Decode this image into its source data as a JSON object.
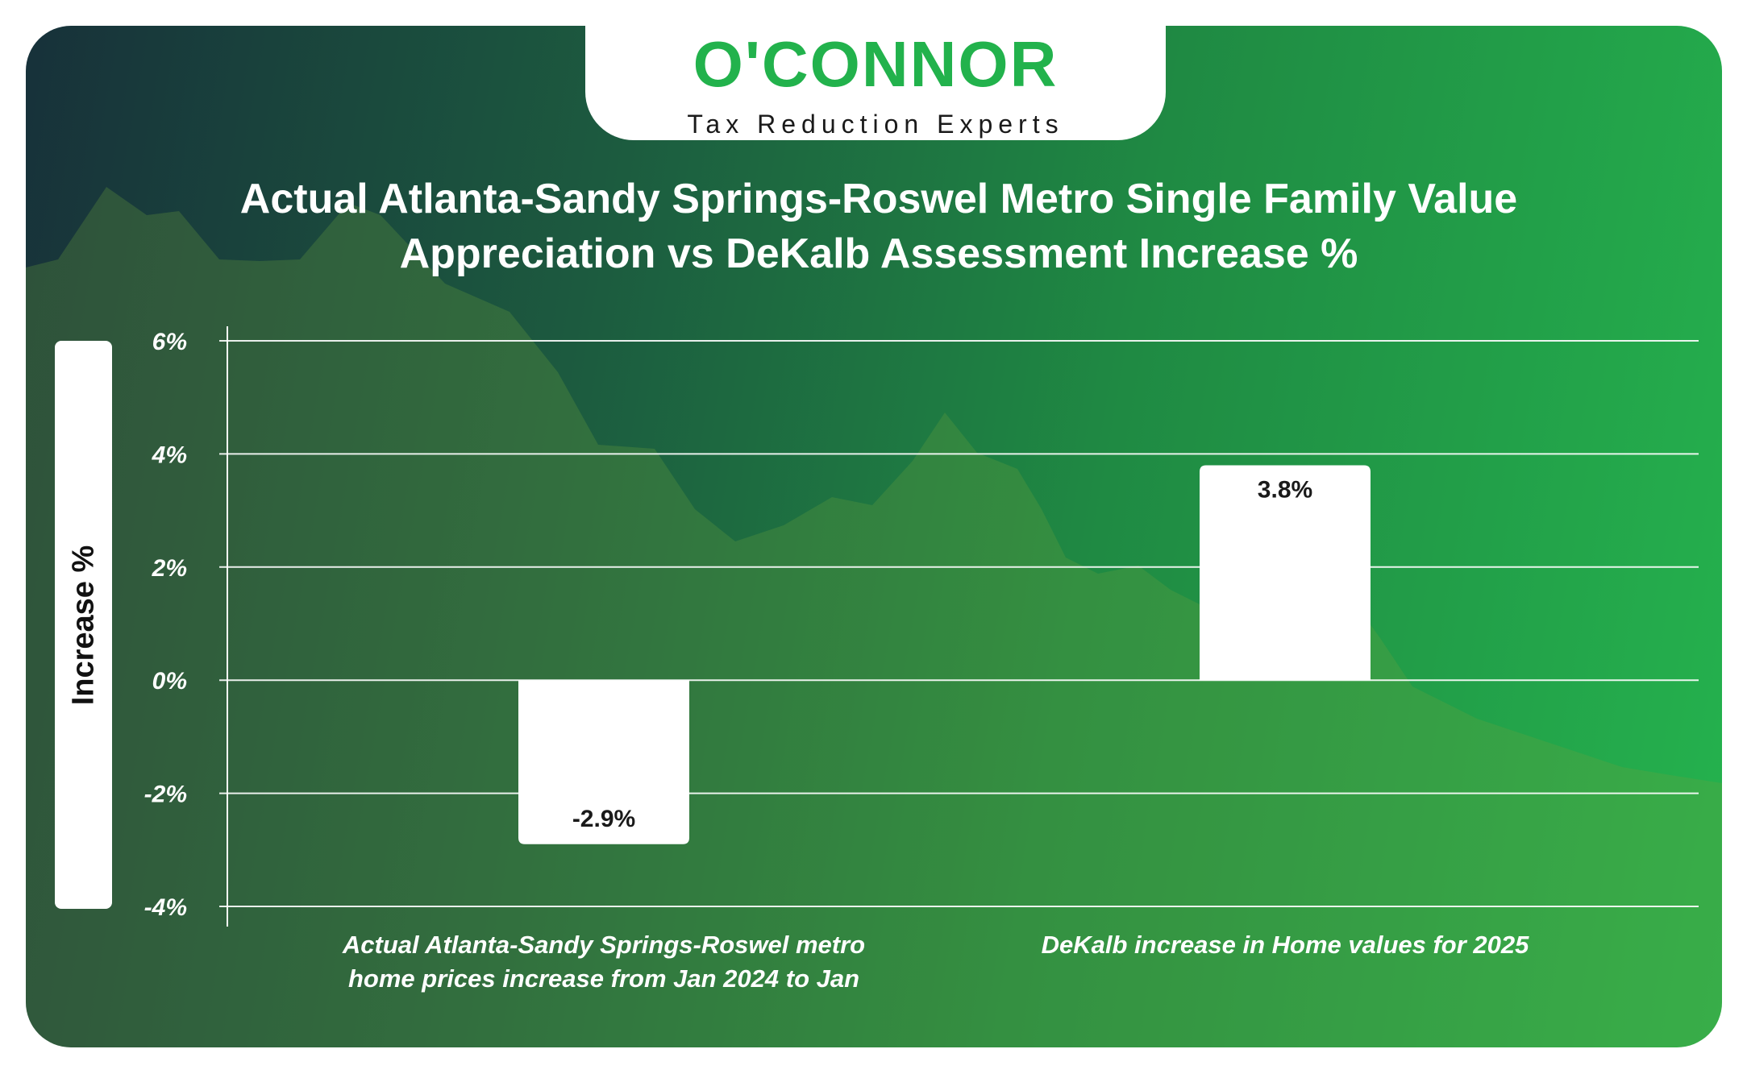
{
  "brand": {
    "name": "O'CONNOR",
    "tagline": "Tax Reduction Experts",
    "color": "#22b24c"
  },
  "title_lines": [
    "Actual Atlanta-Sandy Springs-Roswel Metro Single Family Value",
    "Appreciation vs DeKalb Assessment Increase %"
  ],
  "chart_data": {
    "type": "bar",
    "title": "Actual Atlanta-Sandy Springs-Roswel Metro Single Family Value Appreciation vs DeKalb Assessment Increase %",
    "categories": [
      [
        "Actual Atlanta-Sandy Springs-Roswel metro",
        "home prices increase from Jan 2024 to Jan"
      ],
      [
        "DeKalb increase in Home values for 2025"
      ]
    ],
    "values": [
      -2.9,
      3.8
    ],
    "data_labels": [
      "-2.9%",
      "3.8%"
    ],
    "ylabel": "Increase %",
    "ylim": [
      -4,
      6
    ],
    "yticks": [
      6,
      4,
      2,
      0,
      -2,
      -4
    ],
    "ytick_labels": [
      "6%",
      "4%",
      "2%",
      "0%",
      "-2%",
      "-4%"
    ],
    "grid": true,
    "bar_color": "#ffffff",
    "label_color": "#1a1a1a"
  }
}
